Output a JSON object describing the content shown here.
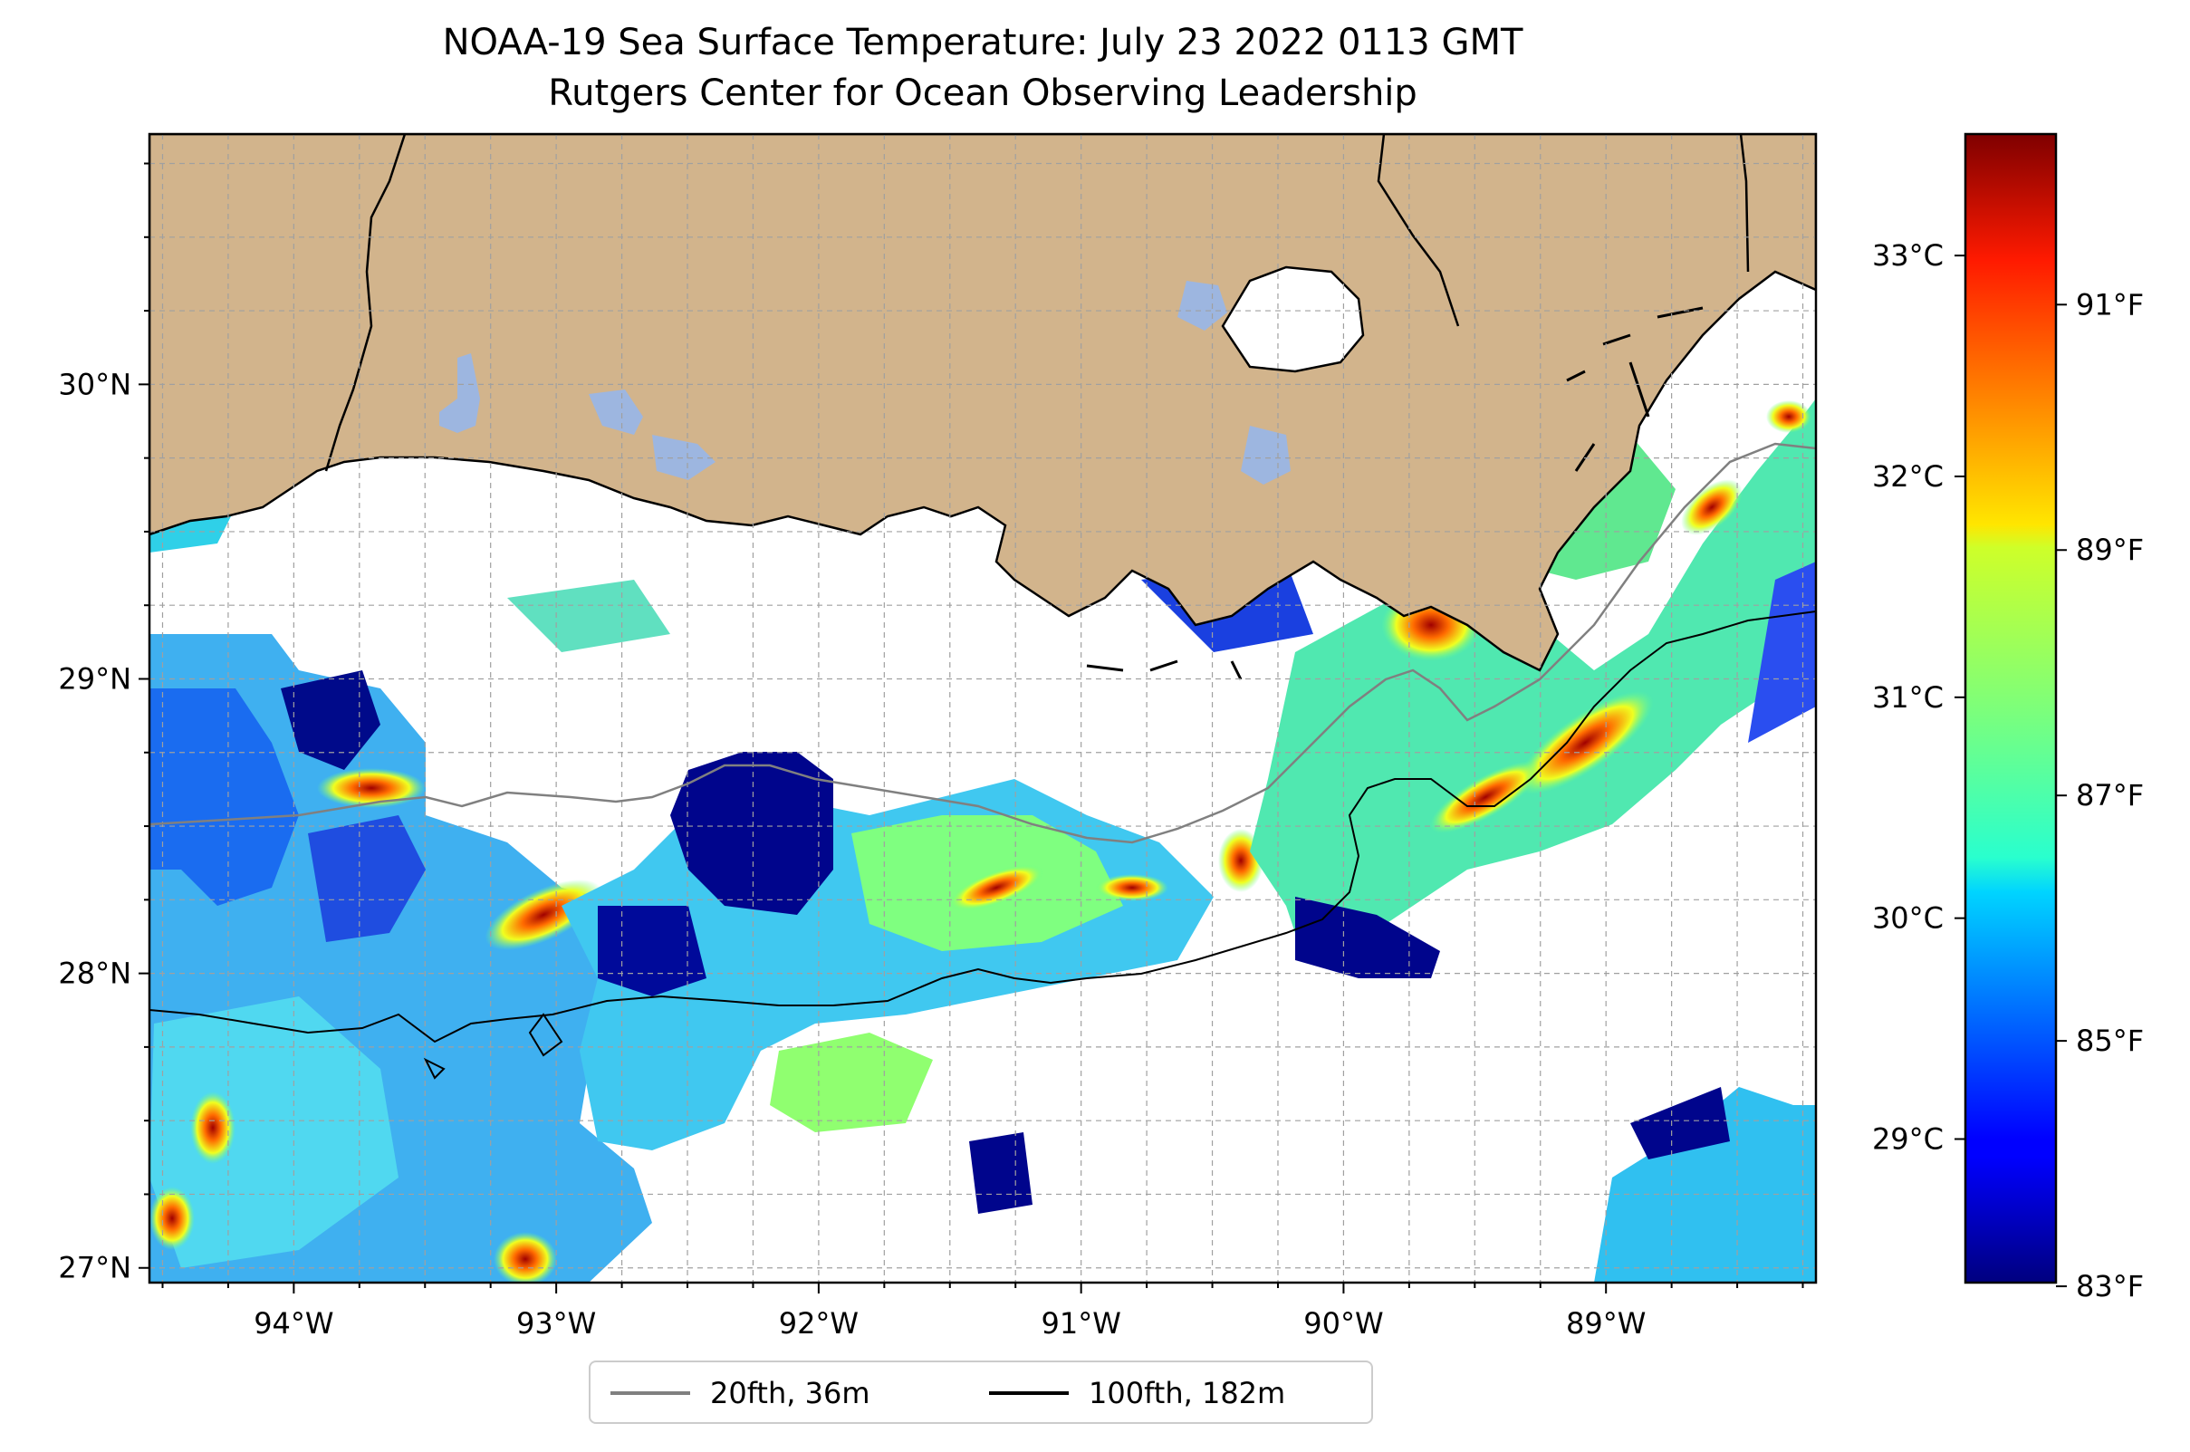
{
  "title": {
    "line1": "NOAA-19 Sea Surface Temperature: July 23 2022 0113 GMT",
    "line2": "Rutgers Center for Ocean Observing Leadership"
  },
  "map": {
    "extent": {
      "lon_min": -94.55,
      "lon_max": -88.2,
      "lat_min": 26.95,
      "lat_max": 30.85
    },
    "x_ticks": [
      {
        "lon": -94,
        "label": "94°W"
      },
      {
        "lon": -93,
        "label": "93°W"
      },
      {
        "lon": -92,
        "label": "92°W"
      },
      {
        "lon": -91,
        "label": "91°W"
      },
      {
        "lon": -90,
        "label": "90°W"
      },
      {
        "lon": -89,
        "label": "89°W"
      }
    ],
    "y_ticks": [
      {
        "lat": 30,
        "label": "30°N"
      },
      {
        "lat": 29,
        "label": "29°N"
      },
      {
        "lat": 28,
        "label": "28°N"
      },
      {
        "lat": 27,
        "label": "27°N"
      }
    ],
    "gridlines": "dashed, every 0.25°",
    "land_color": "#d2b48c",
    "lake_color": "#9db6e0",
    "no_data_color": "#ffffff"
  },
  "legend": {
    "entries": [
      {
        "label": "20fth, 36m",
        "color": "#808080"
      },
      {
        "label": "100fth, 182m",
        "color": "#000000"
      }
    ]
  },
  "colorbar": {
    "colormap": "jet",
    "range_c": [
      28.35,
      33.55
    ],
    "celsius_ticks": [
      {
        "value": 29,
        "label": "29°C"
      },
      {
        "value": 30,
        "label": "30°C"
      },
      {
        "value": 31,
        "label": "31°C"
      },
      {
        "value": 32,
        "label": "32°C"
      },
      {
        "value": 33,
        "label": "33°C"
      }
    ],
    "fahrenheit_ticks": [
      {
        "value": 83,
        "label": "83°F"
      },
      {
        "value": 85,
        "label": "85°F"
      },
      {
        "value": 87,
        "label": "87°F"
      },
      {
        "value": 89,
        "label": "89°F"
      },
      {
        "value": 91,
        "label": "91°F"
      }
    ]
  }
}
